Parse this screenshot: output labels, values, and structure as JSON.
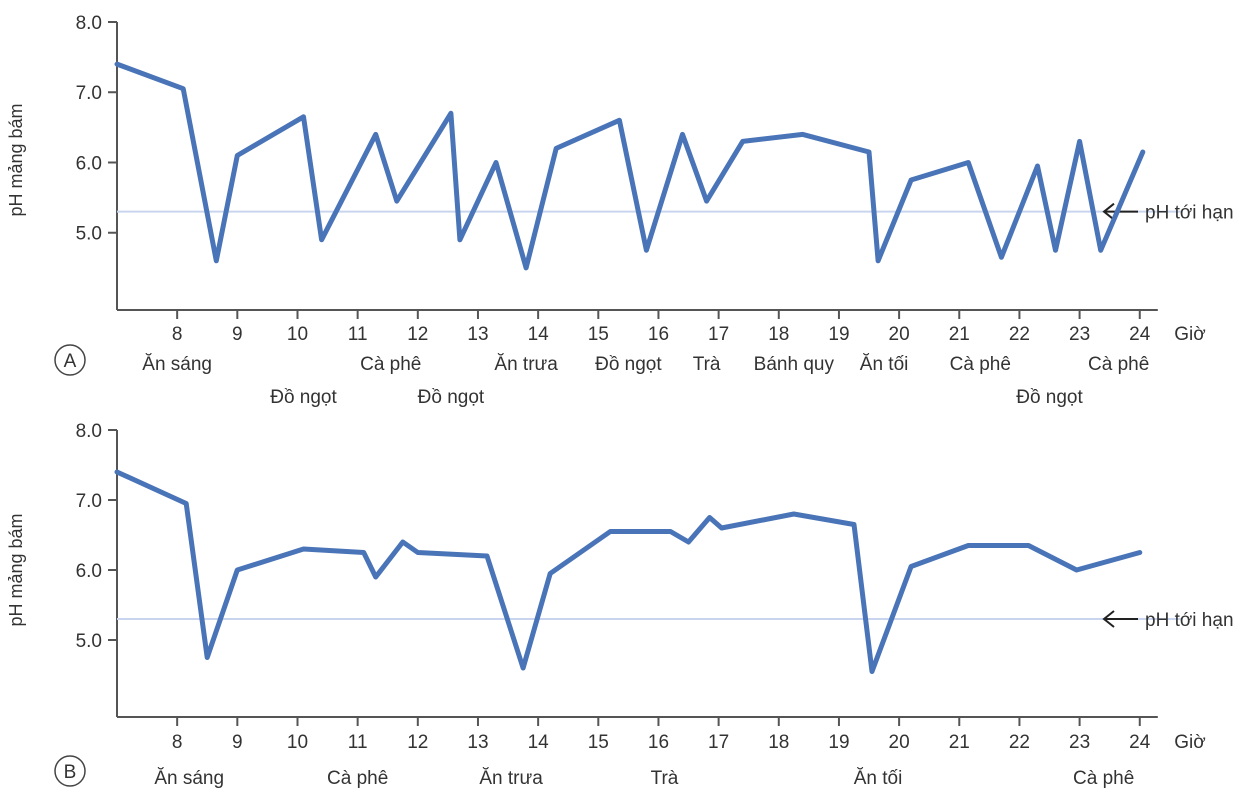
{
  "chart_data": [
    {
      "type": "line",
      "panel": "A",
      "ylabel": "pH mảng bám",
      "xlabel": "Giờ",
      "ylim": [
        3.9,
        8.0
      ],
      "xlim": [
        7.0,
        25.5
      ],
      "yticks": [
        "8.0",
        "7.0",
        "6.0",
        "5.0"
      ],
      "ytick_values": [
        8.0,
        7.0,
        6.0,
        5.0
      ],
      "xticks": [
        8,
        9,
        10,
        11,
        12,
        13,
        14,
        15,
        16,
        17,
        18,
        19,
        20,
        21,
        22,
        23,
        24
      ],
      "xtick_labels": [
        "8",
        "9",
        "10",
        "11",
        "12",
        "13",
        "14",
        "15",
        "16",
        "17",
        "18",
        "19",
        "20",
        "21",
        "22",
        "23",
        "24"
      ],
      "critical_ph": 5.3,
      "critical_label": "pH tới hạn",
      "series": [
        {
          "x": [
            7.0,
            8.1,
            8.65,
            9.0,
            10.1,
            10.4,
            11.3,
            11.65,
            12.55,
            12.7,
            13.3,
            13.8,
            14.3,
            15.35,
            15.8,
            16.4,
            16.8,
            17.4,
            18.4,
            19.5,
            19.65,
            20.2,
            21.15,
            21.7,
            22.3,
            22.6,
            23.0,
            23.35,
            24.05
          ],
          "y": [
            7.4,
            7.05,
            4.6,
            6.1,
            6.65,
            4.9,
            6.4,
            5.45,
            6.7,
            4.9,
            6.0,
            4.5,
            6.2,
            6.6,
            4.75,
            6.4,
            5.45,
            6.3,
            6.4,
            6.15,
            4.6,
            5.75,
            6.0,
            4.65,
            5.95,
            4.75,
            6.3,
            4.75,
            6.15
          ]
        }
      ],
      "events": [
        {
          "label": "Ăn sáng",
          "x": 8.0,
          "row": 1
        },
        {
          "label": "Đồ ngọt",
          "x": 10.1,
          "row": 2
        },
        {
          "label": "Cà phê",
          "x": 11.55,
          "row": 1
        },
        {
          "label": "Đồ ngọt",
          "x": 12.55,
          "row": 2
        },
        {
          "label": "Ăn trưa",
          "x": 13.8,
          "row": 1
        },
        {
          "label": "Đồ ngọt",
          "x": 15.5,
          "row": 1
        },
        {
          "label": "Trà",
          "x": 16.8,
          "row": 1
        },
        {
          "label": "Bánh quy",
          "x": 18.25,
          "row": 1
        },
        {
          "label": "Ăn tối",
          "x": 19.75,
          "row": 1
        },
        {
          "label": "Cà phê",
          "x": 21.35,
          "row": 1
        },
        {
          "label": "Đồ ngọt",
          "x": 22.5,
          "row": 2
        },
        {
          "label": "Cà phê",
          "x": 23.65,
          "row": 1
        }
      ]
    },
    {
      "type": "line",
      "panel": "B",
      "ylabel": "pH mảng bám",
      "xlabel": "Giờ",
      "ylim": [
        3.9,
        8.0
      ],
      "xlim": [
        7.0,
        25.5
      ],
      "yticks": [
        "8.0",
        "7.0",
        "6.0",
        "5.0"
      ],
      "ytick_values": [
        8.0,
        7.0,
        6.0,
        5.0
      ],
      "xticks": [
        8,
        9,
        10,
        11,
        12,
        13,
        14,
        15,
        16,
        17,
        18,
        19,
        20,
        21,
        22,
        23,
        24
      ],
      "xtick_labels": [
        "8",
        "9",
        "10",
        "11",
        "12",
        "13",
        "14",
        "15",
        "16",
        "17",
        "18",
        "19",
        "20",
        "21",
        "22",
        "23",
        "24"
      ],
      "critical_ph": 5.3,
      "critical_label": "pH tới hạn",
      "series": [
        {
          "x": [
            7.0,
            8.15,
            8.5,
            9.0,
            10.1,
            11.1,
            11.3,
            11.75,
            12.0,
            13.15,
            13.75,
            14.2,
            15.2,
            16.2,
            16.5,
            16.85,
            17.05,
            18.25,
            19.25,
            19.55,
            20.2,
            21.15,
            22.15,
            22.95,
            24.0
          ],
          "y": [
            7.4,
            6.95,
            4.75,
            6.0,
            6.3,
            6.25,
            5.9,
            6.4,
            6.25,
            6.2,
            4.6,
            5.95,
            6.55,
            6.55,
            6.4,
            6.75,
            6.6,
            6.8,
            6.65,
            4.55,
            6.05,
            6.35,
            6.35,
            6.0,
            6.25
          ]
        }
      ],
      "events": [
        {
          "label": "Ăn sáng",
          "x": 8.2,
          "row": 1
        },
        {
          "label": "Cà phê",
          "x": 11.0,
          "row": 1
        },
        {
          "label": "Ăn trưa",
          "x": 13.55,
          "row": 1
        },
        {
          "label": "Trà",
          "x": 16.1,
          "row": 1
        },
        {
          "label": "Ăn tối",
          "x": 19.65,
          "row": 1
        },
        {
          "label": "Cà phê",
          "x": 23.4,
          "row": 1
        }
      ]
    }
  ]
}
